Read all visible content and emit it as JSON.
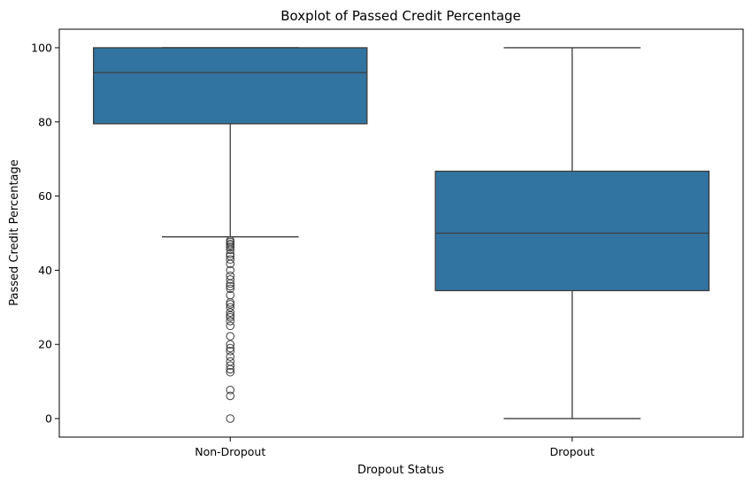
{
  "chart_data": {
    "type": "boxplot",
    "title": "Boxplot of Passed Credit Percentage",
    "xlabel": "Dropout Status",
    "ylabel": "Passed Credit Percentage",
    "ylim": [
      -5,
      105
    ],
    "yticks": [
      0,
      20,
      40,
      60,
      80,
      100
    ],
    "grid": false,
    "box_color": "#3274a1",
    "line_color": "#3d3d3d",
    "groups": [
      {
        "name": "Non-Dropout",
        "whisker_low": 49.0,
        "q1": 79.5,
        "median": 93.3,
        "q3": 100.0,
        "whisker_high": 100.0,
        "outliers": [
          48.0,
          47.6,
          47.1,
          46.7,
          46.2,
          45.5,
          44.4,
          43.8,
          42.9,
          41.7,
          40.0,
          38.5,
          37.5,
          36.4,
          35.7,
          35.0,
          33.3,
          31.3,
          30.8,
          30.0,
          28.6,
          27.8,
          27.3,
          26.3,
          25.0,
          22.2,
          20.0,
          19.0,
          18.2,
          16.7,
          15.4,
          14.3,
          13.3,
          12.5,
          7.7,
          6.1,
          0.0
        ]
      },
      {
        "name": "Dropout",
        "whisker_low": 0.0,
        "q1": 34.5,
        "median": 50.0,
        "q3": 66.7,
        "whisker_high": 100.0,
        "outliers": []
      }
    ]
  }
}
